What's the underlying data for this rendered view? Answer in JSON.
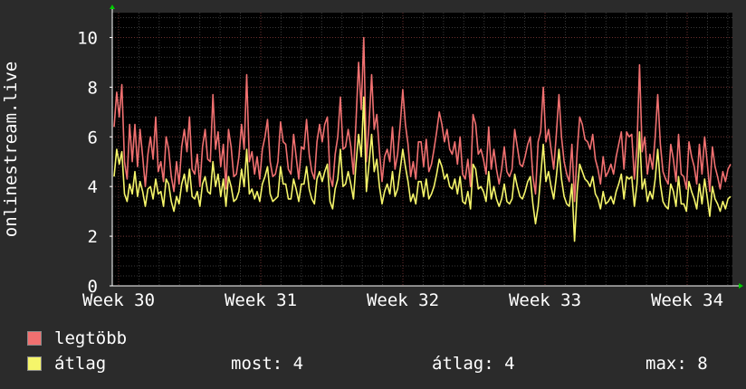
{
  "chart_data": {
    "type": "line",
    "ylabel": "onlinestream.live",
    "ylim": [
      0,
      11
    ],
    "yticks": [
      0,
      2,
      4,
      6,
      8,
      10
    ],
    "xticks": [
      "Week 30",
      "Week 31",
      "Week 32",
      "Week 33",
      "Week 34"
    ],
    "grid": true,
    "series": [
      {
        "name": "legtöbb",
        "color": "#f07070",
        "values": [
          6.4,
          7.8,
          6.8,
          8.1,
          5.0,
          4.3,
          6.5,
          5.0,
          6.5,
          4.8,
          6.3,
          5.2,
          4.0,
          5.3,
          6.0,
          5.1,
          6.8,
          4.6,
          5.0,
          4.2,
          6.0,
          5.5,
          4.4,
          3.8,
          5.0,
          4.1,
          5.6,
          6.3,
          5.4,
          6.8,
          4.7,
          4.5,
          5.3,
          4.0,
          5.6,
          6.3,
          5.1,
          5.0,
          7.7,
          5.5,
          6.2,
          4.8,
          5.7,
          3.9,
          6.3,
          5.6,
          4.4,
          4.5,
          5.2,
          6.5,
          5.5,
          8.5,
          5.0,
          5.4,
          4.5,
          5.2,
          4.3,
          5.5,
          6.0,
          6.7,
          5.0,
          4.4,
          4.5,
          5.0,
          6.6,
          5.8,
          5.7,
          4.7,
          4.5,
          6.1,
          5.2,
          4.3,
          5.6,
          5.5,
          6.7,
          5.3,
          4.6,
          4.3,
          5.8,
          6.5,
          5.8,
          6.5,
          6.8,
          4.4,
          4.0,
          5.3,
          6.0,
          7.6,
          5.5,
          5.6,
          6.3,
          5.6,
          4.5,
          6.6,
          9.0,
          7.1,
          10.0,
          5.0,
          6.5,
          8.5,
          6.3,
          6.9,
          5.4,
          4.2,
          5.2,
          5.5,
          5.0,
          6.4,
          4.7,
          5.3,
          6.5,
          7.9,
          6.5,
          5.7,
          4.4,
          5.0,
          4.3,
          5.8,
          5.8,
          4.8,
          5.9,
          4.6,
          4.9,
          5.5,
          6.2,
          7.0,
          6.5,
          5.8,
          6.3,
          5.5,
          5.3,
          5.8,
          4.9,
          6.0,
          4.5,
          4.3,
          5.1,
          4.0,
          6.9,
          6.5,
          5.3,
          5.5,
          5.1,
          4.5,
          6.4,
          4.7,
          5.5,
          4.7,
          4.1,
          4.7,
          5.6,
          4.6,
          4.4,
          4.7,
          6.3,
          5.6,
          4.9,
          4.8,
          5.2,
          5.7,
          6.0,
          4.4,
          3.7,
          5.8,
          6.2,
          8.0,
          5.8,
          6.3,
          5.5,
          4.7,
          6.1,
          7.7,
          6.0,
          5.0,
          4.5,
          4.2,
          5.7,
          3.4,
          5.4,
          6.8,
          6.5,
          5.9,
          5.8,
          5.5,
          6.1,
          5.1,
          4.7,
          4.1,
          5.2,
          4.4,
          4.6,
          4.9,
          4.5,
          5.2,
          5.7,
          6.2,
          4.7,
          6.2,
          6.0,
          6.1,
          4.3,
          5.6,
          8.9,
          5.4,
          6.0,
          4.5,
          5.3,
          4.7,
          6.0,
          7.7,
          5.7,
          4.6,
          4.3,
          4.1,
          5.7,
          5.1,
          4.2,
          6.1,
          4.5,
          4.4,
          3.9,
          5.8,
          5.2,
          4.8,
          4.1,
          5.7,
          4.5,
          6.0,
          5.0,
          3.8,
          5.6,
          4.8,
          4.4,
          3.9,
          4.6,
          4.2,
          4.7,
          4.9
        ]
      },
      {
        "name": "átlag",
        "color": "#f5f56a",
        "values": [
          4.4,
          5.5,
          4.9,
          5.4,
          3.7,
          3.4,
          4.1,
          3.7,
          4.6,
          3.6,
          4.2,
          3.8,
          3.2,
          3.9,
          4.0,
          3.5,
          4.3,
          3.7,
          3.8,
          3.2,
          4.3,
          4.1,
          3.4,
          3.0,
          3.6,
          3.3,
          4.1,
          4.5,
          3.8,
          4.7,
          3.6,
          3.5,
          3.8,
          3.2,
          4.1,
          4.4,
          3.8,
          3.7,
          5.0,
          4.0,
          4.5,
          3.6,
          4.3,
          3.2,
          4.4,
          4.0,
          3.4,
          3.5,
          3.8,
          4.7,
          4.0,
          5.5,
          3.7,
          3.9,
          3.5,
          3.8,
          3.4,
          4.1,
          4.4,
          4.8,
          3.7,
          3.4,
          3.5,
          3.6,
          4.8,
          4.1,
          4.1,
          3.5,
          3.5,
          4.3,
          3.9,
          3.4,
          4.1,
          4.1,
          4.8,
          3.9,
          3.5,
          3.3,
          4.3,
          4.6,
          4.2,
          4.6,
          4.9,
          3.4,
          3.1,
          3.9,
          4.3,
          5.5,
          4.0,
          4.1,
          4.6,
          4.1,
          3.5,
          4.9,
          6.1,
          5.2,
          7.6,
          3.8,
          4.9,
          6.1,
          4.6,
          5.1,
          4.0,
          3.3,
          3.8,
          4.1,
          3.7,
          4.6,
          3.6,
          3.9,
          4.7,
          5.5,
          4.8,
          4.2,
          3.4,
          3.7,
          3.3,
          4.2,
          4.2,
          3.6,
          4.3,
          3.5,
          3.7,
          4.0,
          4.5,
          5.1,
          4.8,
          4.3,
          4.5,
          4.0,
          3.9,
          4.3,
          3.7,
          4.4,
          3.4,
          3.3,
          3.8,
          3.1,
          4.9,
          4.7,
          3.9,
          4.0,
          3.8,
          3.4,
          4.6,
          3.5,
          4.0,
          3.5,
          3.2,
          3.5,
          4.1,
          3.4,
          3.3,
          3.5,
          4.5,
          4.0,
          3.6,
          3.5,
          3.8,
          4.2,
          4.4,
          3.3,
          2.5,
          3.2,
          4.4,
          5.7,
          4.2,
          4.6,
          4.0,
          3.5,
          4.4,
          5.5,
          4.3,
          3.6,
          3.3,
          3.2,
          4.1,
          1.8,
          3.8,
          4.9,
          4.6,
          4.3,
          4.2,
          4.0,
          4.4,
          3.7,
          3.5,
          3.1,
          3.8,
          3.3,
          3.4,
          3.6,
          3.3,
          3.8,
          4.1,
          4.5,
          3.5,
          4.4,
          4.3,
          4.4,
          3.2,
          4.1,
          6.2,
          3.9,
          4.3,
          3.4,
          3.8,
          3.5,
          4.3,
          5.5,
          4.1,
          3.4,
          3.2,
          3.1,
          4.1,
          3.8,
          3.2,
          4.4,
          3.3,
          3.3,
          3.0,
          4.2,
          3.8,
          3.5,
          3.1,
          4.1,
          3.3,
          4.3,
          3.6,
          2.8,
          4.0,
          3.5,
          3.3,
          3.0,
          3.4,
          3.1,
          3.5,
          3.6
        ]
      }
    ]
  },
  "legend": {
    "items": [
      {
        "label": "legtöbb",
        "color": "#f07070"
      },
      {
        "label": "átlag",
        "color": "#f5f56a"
      }
    ],
    "stats": {
      "now": "most: 4",
      "avg": "átlag: 4",
      "max": "max: 8"
    }
  }
}
